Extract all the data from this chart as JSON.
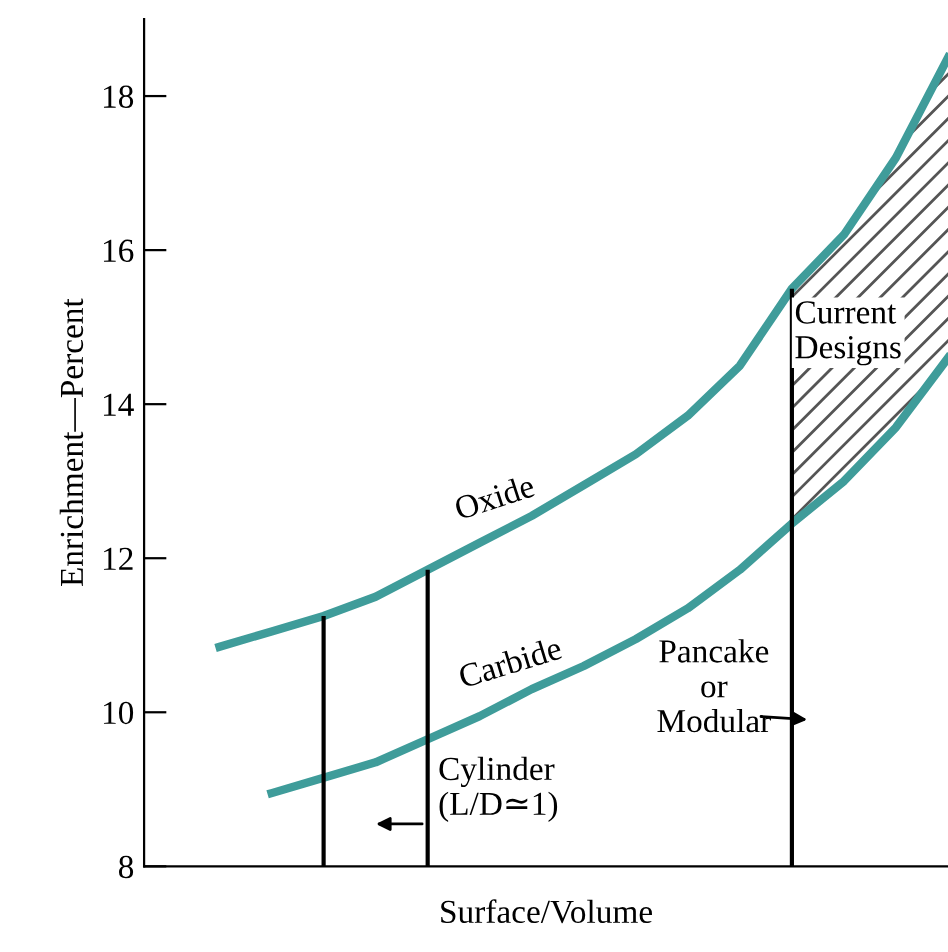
{
  "chart_data": {
    "type": "line",
    "xlabel": "Surface/Volume",
    "ylabel": "Enrichment—Percent",
    "categories": [
      null,
      null,
      null,
      null,
      null,
      null,
      null,
      null,
      null,
      null,
      null,
      null,
      null,
      null,
      null,
      null
    ],
    "series": [
      {
        "name": "Oxide",
        "color": "#3f9c9a",
        "values": [
          null,
          10.85,
          11.05,
          11.25,
          11.5,
          11.85,
          12.2,
          12.55,
          12.95,
          13.35,
          13.85,
          14.5,
          15.5,
          16.2,
          17.2,
          18.5
        ]
      },
      {
        "name": "Carbide",
        "color": "#3f9c9a",
        "values": [
          null,
          null,
          8.95,
          9.15,
          9.35,
          9.65,
          9.95,
          10.3,
          10.6,
          10.95,
          11.35,
          11.85,
          12.45,
          13.0,
          13.7,
          14.6
        ]
      }
    ],
    "ylim": [
      8,
      19
    ],
    "yticks": [
      8,
      10,
      12,
      14,
      16,
      18
    ],
    "tick_labels": "y",
    "grid": false,
    "legend": false,
    "marker": "none",
    "line_style": "solid",
    "annotations": [
      "Pancake\nor\nModular",
      "Cylinder\n(L/D≃1)",
      "Current\nDesigns"
    ]
  }
}
